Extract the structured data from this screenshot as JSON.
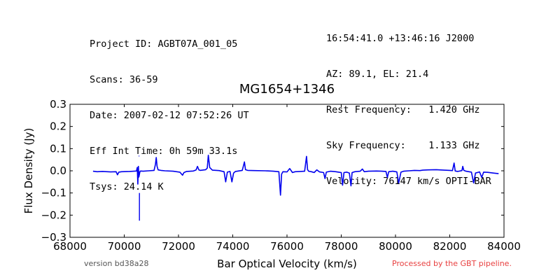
{
  "header": {
    "left": [
      "Project ID: AGBT07A_001_05",
      "Scans: 36-59",
      "Date: 2007-02-12 07:52:26 UT",
      "Eff Int Time: 0h 59m 33.1s",
      "Tsys: 24.14 K"
    ],
    "right": [
      "16:54:41.0 +13:46:16 J2000",
      "AZ: 89.1, EL: 21.4",
      "Rest Frequency:   1.420 GHz",
      "Sky Frequency:    1.133 GHz",
      "Velocity: 76147 km/s OPTI-BAR"
    ]
  },
  "footer": {
    "version": "version bd38a28",
    "processed": "Processed by the GBT pipeline."
  },
  "colors": {
    "series": "#0000ee",
    "processed_text": "#e84040",
    "version_text": "#555555"
  },
  "chart_data": {
    "type": "line",
    "title": "MG1654+1346",
    "xlabel": "Bar Optical Velocity (km/s)",
    "ylabel": "Flux Density (Jy)",
    "xlim": [
      68000,
      84000
    ],
    "ylim": [
      -0.3,
      0.3
    ],
    "xticks": [
      68000,
      70000,
      72000,
      74000,
      76000,
      78000,
      80000,
      82000,
      84000
    ],
    "yticks": [
      -0.3,
      -0.2,
      -0.1,
      0.0,
      0.1,
      0.2,
      0.3
    ],
    "xtick_labels": [
      "68000",
      "70000",
      "72000",
      "74000",
      "76000",
      "78000",
      "80000",
      "82000",
      "84000"
    ],
    "ytick_labels": [
      "−0.3",
      "−0.2",
      "−0.1",
      "0.0",
      "0.1",
      "0.2",
      "0.3"
    ],
    "grid": false,
    "series": [
      {
        "x": [
          68850,
          69000,
          69200,
          69500,
          69700,
          69750,
          69800,
          69900,
          70200,
          70450,
          70480,
          70500,
          70520,
          70540,
          70560,
          70580,
          70600,
          70700,
          70900,
          71100,
          71150,
          71180,
          71210,
          71250,
          71350,
          71500,
          71800,
          72050,
          72150,
          72200,
          72300,
          72550,
          72650,
          72700,
          72750,
          72800,
          73000,
          73060,
          73100,
          73150,
          73250,
          73500,
          73680,
          73740,
          73800,
          73900,
          73970,
          74030,
          74100,
          74350,
          74430,
          74470,
          74550,
          74800,
          75200,
          75500,
          75700,
          75760,
          75800,
          75850,
          76000,
          76100,
          76200,
          76300,
          76500,
          76650,
          76720,
          76760,
          76800,
          76900,
          77000,
          77100,
          77200,
          77350,
          77400,
          77450,
          77600,
          77800,
          77900,
          78000,
          78050,
          78100,
          78200,
          78300,
          78360,
          78400,
          78500,
          78700,
          78780,
          78850,
          79000,
          79300,
          79500,
          79650,
          79700,
          79750,
          79900,
          80050,
          80120,
          80200,
          80300,
          80500,
          80700,
          80900,
          81000,
          81200,
          81500,
          81800,
          82000,
          82100,
          82160,
          82200,
          82300,
          82450,
          82480,
          82520,
          82600,
          82800,
          82880,
          82950,
          83100,
          83180,
          83250,
          83400,
          83600,
          83800
        ],
        "y": [
          -0.002,
          -0.004,
          -0.003,
          -0.005,
          -0.004,
          -0.018,
          -0.006,
          -0.004,
          -0.003,
          -0.001,
          0.015,
          -0.06,
          0.02,
          -0.028,
          -0.015,
          -0.003,
          -0.001,
          -0.002,
          0.0,
          0.002,
          0.03,
          0.06,
          0.02,
          0.004,
          0.002,
          0.0,
          -0.002,
          -0.006,
          -0.02,
          -0.008,
          -0.003,
          -0.001,
          0.004,
          0.02,
          0.004,
          0.002,
          0.005,
          0.012,
          0.07,
          0.015,
          0.003,
          0.001,
          -0.004,
          -0.05,
          -0.006,
          -0.003,
          -0.05,
          -0.01,
          -0.003,
          0.002,
          0.04,
          0.005,
          0.002,
          0.001,
          0.0,
          -0.002,
          -0.004,
          -0.11,
          -0.015,
          -0.004,
          -0.005,
          0.01,
          -0.008,
          -0.004,
          -0.003,
          -0.002,
          0.065,
          0.005,
          -0.002,
          -0.004,
          -0.008,
          0.004,
          -0.005,
          -0.008,
          -0.035,
          -0.006,
          -0.002,
          -0.004,
          -0.006,
          -0.008,
          -0.065,
          -0.008,
          -0.006,
          -0.01,
          -0.068,
          -0.008,
          -0.004,
          -0.002,
          0.008,
          -0.004,
          -0.002,
          -0.001,
          -0.002,
          -0.003,
          -0.03,
          -0.004,
          -0.002,
          -0.005,
          -0.055,
          -0.006,
          -0.002,
          0.0,
          0.002,
          0.001,
          0.003,
          0.004,
          0.005,
          0.003,
          0.002,
          0.001,
          0.035,
          -0.001,
          -0.003,
          0.001,
          0.02,
          0.002,
          -0.002,
          -0.006,
          -0.055,
          -0.01,
          -0.005,
          -0.03,
          -0.006,
          -0.007,
          -0.01,
          -0.013
        ]
      }
    ],
    "spikes": [
      {
        "x": 70560,
        "y_from": -0.1,
        "y_to": -0.225
      },
      {
        "x": 70545,
        "y_from": 0.065,
        "y_to": 0.068
      }
    ]
  }
}
